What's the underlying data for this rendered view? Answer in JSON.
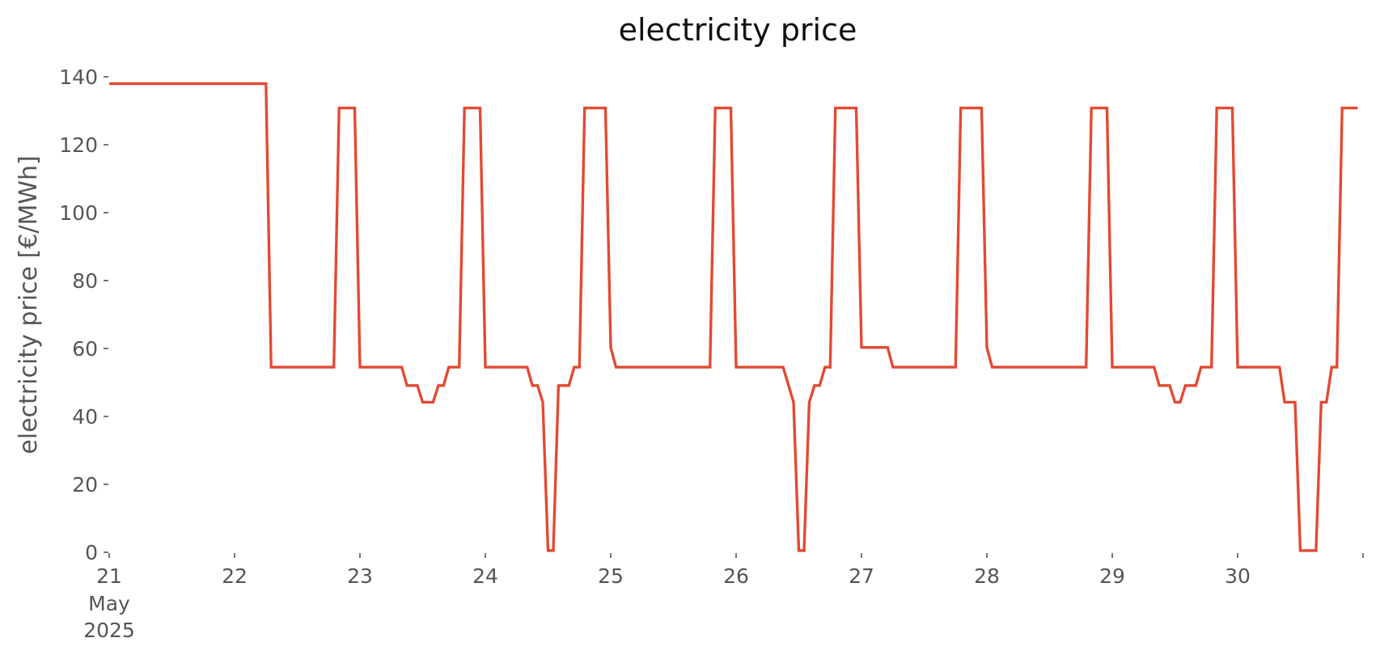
{
  "chart_data": {
    "type": "line",
    "title": "electricity price",
    "xlabel": "",
    "ylabel": "electricity price [€/MWh]",
    "grid": false,
    "legend": "none",
    "ylim": [
      0,
      140
    ],
    "xlim": [
      "2025-05-21 00:00",
      "2025-05-31 00:00"
    ],
    "y_ticks": [
      0,
      20,
      40,
      60,
      80,
      100,
      120,
      140
    ],
    "x_tick_labels": [
      "21",
      "22",
      "23",
      "24",
      "25",
      "26",
      "27",
      "28",
      "29",
      "30"
    ],
    "x_tick_sublabels": [
      "May",
      "2025"
    ],
    "series": [
      {
        "color": "#e24a33",
        "points": [
          [
            "2025-05-21 00:00",
            138
          ],
          [
            "2025-05-22 06:00",
            138
          ],
          [
            "2025-05-22 07:00",
            54.5
          ],
          [
            "2025-05-22 19:00",
            54.5
          ],
          [
            "2025-05-22 20:00",
            130.8
          ],
          [
            "2025-05-22 23:00",
            130.8
          ],
          [
            "2025-05-23 00:00",
            54.5
          ],
          [
            "2025-05-23 08:00",
            54.5
          ],
          [
            "2025-05-23 09:00",
            49.1
          ],
          [
            "2025-05-23 11:00",
            49.1
          ],
          [
            "2025-05-23 12:00",
            44.2
          ],
          [
            "2025-05-23 14:00",
            44.2
          ],
          [
            "2025-05-23 15:00",
            49.1
          ],
          [
            "2025-05-23 16:00",
            49.1
          ],
          [
            "2025-05-23 17:00",
            54.5
          ],
          [
            "2025-05-23 19:00",
            54.5
          ],
          [
            "2025-05-23 20:00",
            130.8
          ],
          [
            "2025-05-23 23:00",
            130.8
          ],
          [
            "2025-05-24 00:00",
            54.5
          ],
          [
            "2025-05-24 08:00",
            54.5
          ],
          [
            "2025-05-24 09:00",
            49.1
          ],
          [
            "2025-05-24 10:00",
            49.1
          ],
          [
            "2025-05-24 11:00",
            44.2
          ],
          [
            "2025-05-24 12:00",
            0.5
          ],
          [
            "2025-05-24 13:00",
            0.5
          ],
          [
            "2025-05-24 14:00",
            49.1
          ],
          [
            "2025-05-24 16:00",
            49.1
          ],
          [
            "2025-05-24 17:00",
            54.5
          ],
          [
            "2025-05-24 18:00",
            54.5
          ],
          [
            "2025-05-24 19:00",
            130.8
          ],
          [
            "2025-05-24 23:00",
            130.8
          ],
          [
            "2025-05-25 00:00",
            60.3
          ],
          [
            "2025-05-25 01:00",
            54.5
          ],
          [
            "2025-05-25 19:00",
            54.5
          ],
          [
            "2025-05-25 20:00",
            130.8
          ],
          [
            "2025-05-25 23:00",
            130.8
          ],
          [
            "2025-05-26 00:00",
            54.5
          ],
          [
            "2025-05-26 09:00",
            54.5
          ],
          [
            "2025-05-26 11:00",
            44.2
          ],
          [
            "2025-05-26 12:00",
            0.5
          ],
          [
            "2025-05-26 13:00",
            0.5
          ],
          [
            "2025-05-26 14:00",
            44.2
          ],
          [
            "2025-05-26 15:00",
            49.1
          ],
          [
            "2025-05-26 16:00",
            49.1
          ],
          [
            "2025-05-26 17:00",
            54.5
          ],
          [
            "2025-05-26 18:00",
            54.5
          ],
          [
            "2025-05-26 19:00",
            130.8
          ],
          [
            "2025-05-26 23:00",
            130.8
          ],
          [
            "2025-05-27 00:00",
            60.3
          ],
          [
            "2025-05-27 05:00",
            60.3
          ],
          [
            "2025-05-27 06:00",
            54.5
          ],
          [
            "2025-05-27 18:00",
            54.5
          ],
          [
            "2025-05-27 19:00",
            130.8
          ],
          [
            "2025-05-27 23:00",
            130.8
          ],
          [
            "2025-05-28 00:00",
            60.3
          ],
          [
            "2025-05-28 01:00",
            54.5
          ],
          [
            "2025-05-28 19:00",
            54.5
          ],
          [
            "2025-05-28 20:00",
            130.8
          ],
          [
            "2025-05-28 23:00",
            130.8
          ],
          [
            "2025-05-29 00:00",
            54.5
          ],
          [
            "2025-05-29 08:00",
            54.5
          ],
          [
            "2025-05-29 09:00",
            49.1
          ],
          [
            "2025-05-29 11:00",
            49.1
          ],
          [
            "2025-05-29 12:00",
            44.2
          ],
          [
            "2025-05-29 13:00",
            44.2
          ],
          [
            "2025-05-29 14:00",
            49.1
          ],
          [
            "2025-05-29 16:00",
            49.1
          ],
          [
            "2025-05-29 17:00",
            54.5
          ],
          [
            "2025-05-29 19:00",
            54.5
          ],
          [
            "2025-05-29 20:00",
            130.8
          ],
          [
            "2025-05-29 23:00",
            130.8
          ],
          [
            "2025-05-30 00:00",
            54.5
          ],
          [
            "2025-05-30 08:00",
            54.5
          ],
          [
            "2025-05-30 09:00",
            44.2
          ],
          [
            "2025-05-30 11:00",
            44.2
          ],
          [
            "2025-05-30 12:00",
            0.5
          ],
          [
            "2025-05-30 15:00",
            0.5
          ],
          [
            "2025-05-30 16:00",
            44.2
          ],
          [
            "2025-05-30 17:00",
            44.2
          ],
          [
            "2025-05-30 18:00",
            54.5
          ],
          [
            "2025-05-30 19:00",
            54.5
          ],
          [
            "2025-05-30 20:00",
            130.8
          ],
          [
            "2025-05-30 23:00",
            130.8
          ]
        ]
      }
    ]
  }
}
